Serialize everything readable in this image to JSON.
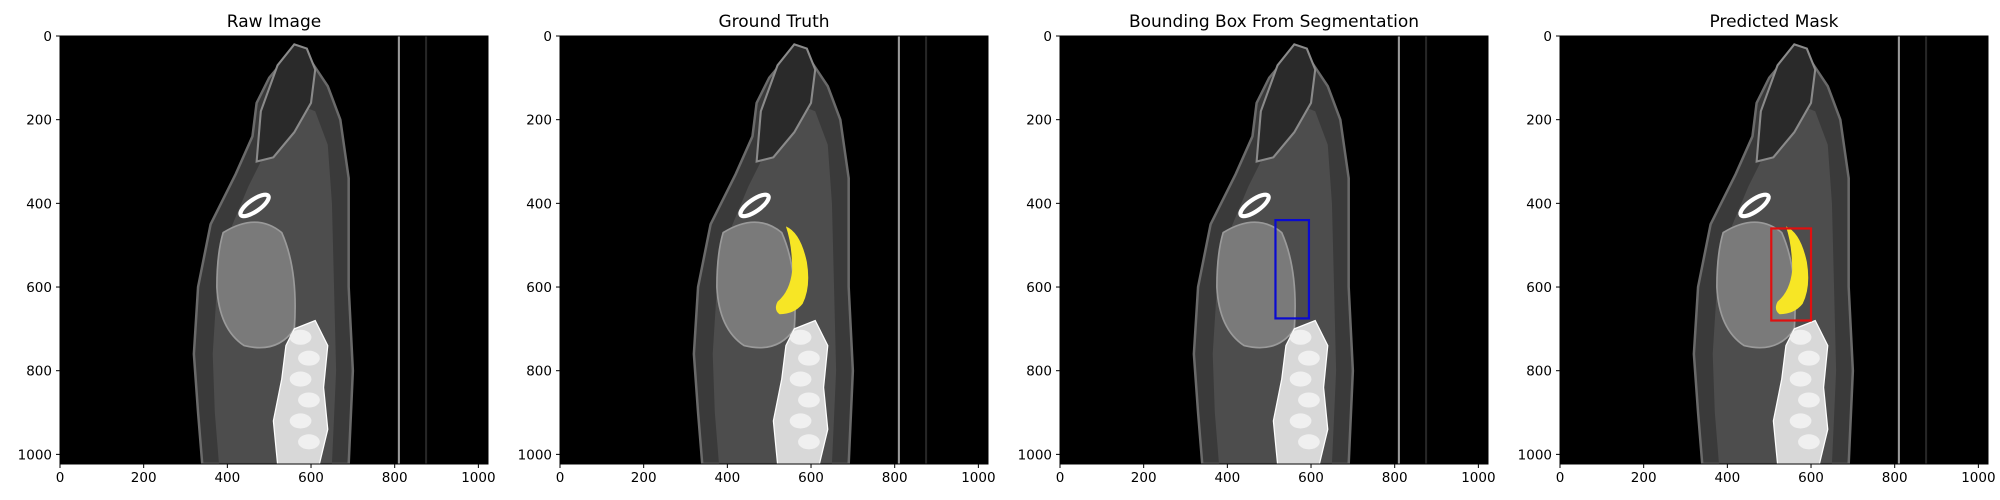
{
  "figure": {
    "axes": {
      "x_ticks": [
        "0",
        "200",
        "400",
        "600",
        "800",
        "1000"
      ],
      "y_ticks": [
        "0",
        "200",
        "400",
        "600",
        "800",
        "1000"
      ],
      "data_range": [
        0,
        1023
      ]
    },
    "colors": {
      "background": "#000000",
      "mask": "#f7e625",
      "ground_truth_box": "#0a0ad0",
      "predicted_box": "#e01010"
    },
    "panels": [
      {
        "title": "Raw Image",
        "overlay": "none"
      },
      {
        "title": "Ground Truth",
        "overlay": "mask"
      },
      {
        "title": "Bounding Box From Segmentation",
        "overlay": "box",
        "box": {
          "x0": 515,
          "y0": 440,
          "x1": 595,
          "y1": 675
        },
        "box_color": "#0a0ad0"
      },
      {
        "title": "Predicted Mask",
        "overlay": "mask+box",
        "box": {
          "x0": 505,
          "y0": 460,
          "x1": 600,
          "y1": 680
        },
        "box_color": "#e01010"
      }
    ]
  }
}
